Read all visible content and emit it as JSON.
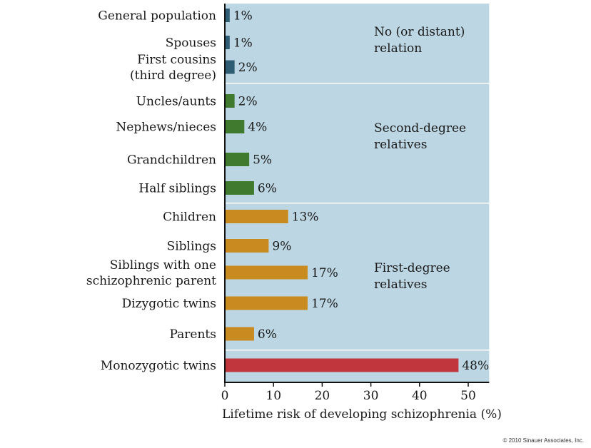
{
  "chart_data": {
    "type": "bar",
    "orientation": "horizontal",
    "title": "",
    "xlabel": "Lifetime risk of developing schizophrenia (%)",
    "ylabel": "",
    "xlim": [
      0,
      54.3
    ],
    "xticks": [
      0,
      10,
      20,
      30,
      40,
      50
    ],
    "grid": false,
    "value_suffix": "%",
    "groups": [
      {
        "name": "No (or distant) relation",
        "label_lines": [
          "No (or distant)",
          "relation"
        ],
        "color": "#2f5d74",
        "categories": [
          {
            "label_lines": [
              "General population"
            ],
            "value": 1
          },
          {
            "label_lines": [
              "Spouses"
            ],
            "value": 1
          },
          {
            "label_lines": [
              "First cousins",
              "(third degree)"
            ],
            "value": 2
          }
        ]
      },
      {
        "name": "Second-degree relatives",
        "label_lines": [
          "Second-degree",
          "relatives"
        ],
        "color": "#3f7a2f",
        "categories": [
          {
            "label_lines": [
              "Uncles/aunts"
            ],
            "value": 2
          },
          {
            "label_lines": [
              "Nephews/nieces"
            ],
            "value": 4
          },
          {
            "label_lines": [
              "Grandchildren"
            ],
            "value": 5
          },
          {
            "label_lines": [
              "Half siblings"
            ],
            "value": 6
          }
        ]
      },
      {
        "name": "First-degree relatives",
        "label_lines": [
          "First-degree",
          "relatives"
        ],
        "color": "#c98a1f",
        "categories": [
          {
            "label_lines": [
              "Children"
            ],
            "value": 13
          },
          {
            "label_lines": [
              "Siblings"
            ],
            "value": 9
          },
          {
            "label_lines": [
              "Siblings with one",
              "schizophrenic parent"
            ],
            "value": 17
          },
          {
            "label_lines": [
              "Dizygotic twins"
            ],
            "value": 17
          },
          {
            "label_lines": [
              "Parents"
            ],
            "value": 6
          }
        ]
      },
      {
        "name": "Monozygotic twins",
        "label_lines": [],
        "color": "#c0363c",
        "categories": [
          {
            "label_lines": [
              "Monozygotic twins"
            ],
            "value": 48
          }
        ]
      }
    ],
    "panel_color": "#bcd6e3"
  },
  "copyright": "© 2010 Sinauer Associates, Inc."
}
